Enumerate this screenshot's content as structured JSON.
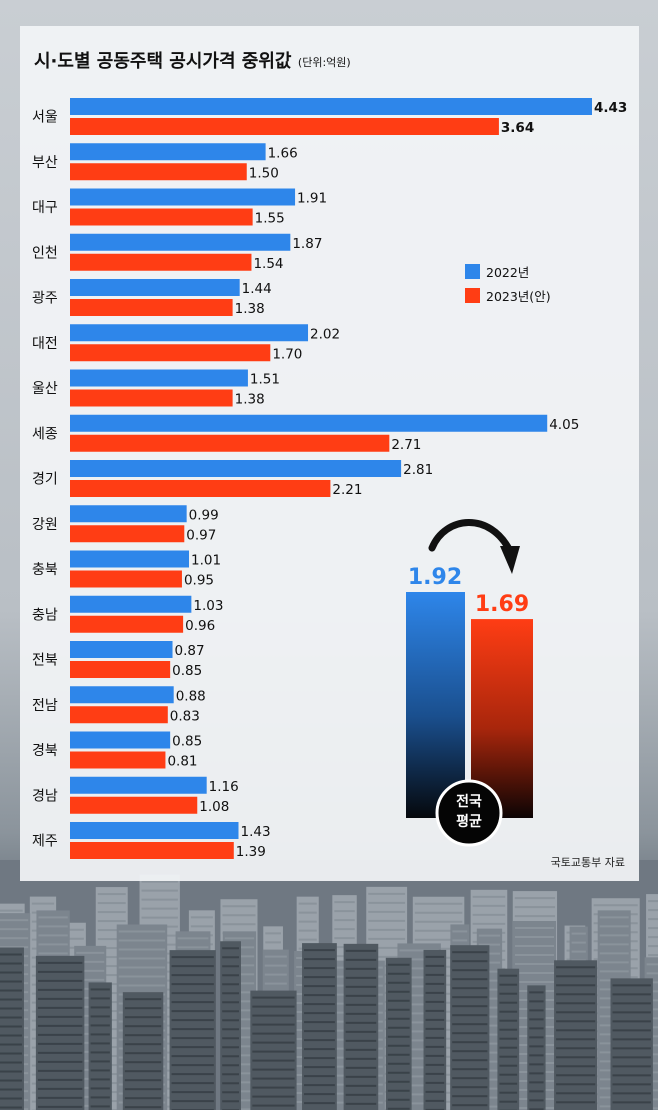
{
  "chart_data": {
    "type": "bar",
    "orientation": "horizontal",
    "title": "시·도별 공동주택 공시가격 중위값",
    "unit": "(단위:억원)",
    "categories": [
      "서울",
      "부산",
      "대구",
      "인천",
      "광주",
      "대전",
      "울산",
      "세종",
      "경기",
      "강원",
      "충북",
      "충남",
      "전북",
      "전남",
      "경북",
      "경남",
      "제주"
    ],
    "series": [
      {
        "name": "2022년",
        "color": "#2e86ea",
        "values": [
          4.43,
          1.66,
          1.91,
          1.87,
          1.44,
          2.02,
          1.51,
          4.05,
          2.81,
          0.99,
          1.01,
          1.03,
          0.87,
          0.88,
          0.85,
          1.16,
          1.43
        ],
        "labels": [
          "4.43",
          "1.66",
          "1.91",
          "1.87",
          "1.44",
          "2.02",
          "1.51",
          "4.05",
          "2.81",
          "0.99",
          "1.01",
          "1.03",
          "0.87",
          "0.88",
          "0.85",
          "1.16",
          "1.43"
        ]
      },
      {
        "name": "2023년(안)",
        "color": "#ff3d14",
        "values": [
          3.64,
          1.5,
          1.55,
          1.54,
          1.38,
          1.7,
          1.38,
          2.71,
          2.21,
          0.97,
          0.95,
          0.96,
          0.85,
          0.83,
          0.81,
          1.08,
          1.39
        ],
        "labels": [
          "3.64",
          "1.50",
          "1.55",
          "1.54",
          "1.38",
          "1.70",
          "1.38",
          "2.71",
          "2.21",
          "0.97",
          "0.95",
          "0.96",
          "0.85",
          "0.83",
          "0.81",
          "1.08",
          "1.39"
        ]
      }
    ],
    "xlim": [
      0,
      4.43
    ],
    "legend_position": "right",
    "highlight_labels": [
      "4.43",
      "3.64"
    ],
    "national_average": {
      "label_line1": "전국",
      "label_line2": "평균",
      "values": [
        1.92,
        1.69
      ],
      "value_labels": [
        "1.92",
        "1.69"
      ]
    },
    "source": "국토교통부 자료"
  }
}
